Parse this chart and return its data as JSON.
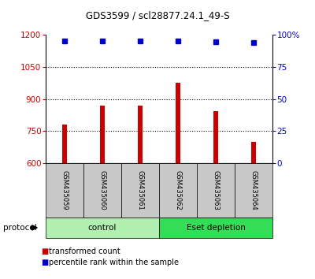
{
  "title": "GDS3599 / scl28877.24.1_49-S",
  "samples": [
    "GSM435059",
    "GSM435060",
    "GSM435061",
    "GSM435062",
    "GSM435063",
    "GSM435064"
  ],
  "transformed_counts": [
    780,
    868,
    870,
    975,
    845,
    700
  ],
  "percentile_ranks": [
    95,
    95.5,
    95.5,
    95.5,
    94.5,
    94
  ],
  "ylim_left": [
    600,
    1200
  ],
  "ylim_right": [
    0,
    100
  ],
  "yticks_left": [
    600,
    750,
    900,
    1050,
    1200
  ],
  "yticks_right": [
    0,
    25,
    50,
    75,
    100
  ],
  "ytick_labels_right": [
    "0",
    "25",
    "50",
    "75",
    "100%"
  ],
  "bar_color": "#cc0000",
  "dot_color": "#0000cc",
  "protocol_groups": [
    {
      "label": "control",
      "color": "#b2f0b2",
      "start": 0,
      "end": 3
    },
    {
      "label": "Eset depletion",
      "color": "#33dd55",
      "start": 3,
      "end": 6
    }
  ],
  "protocol_label": "protocol",
  "legend_items": [
    {
      "color": "#cc0000",
      "label": "transformed count"
    },
    {
      "color": "#0000cc",
      "label": "percentile rank within the sample"
    }
  ],
  "background_color": "#ffffff",
  "tick_area_bg": "#c8c8c8"
}
